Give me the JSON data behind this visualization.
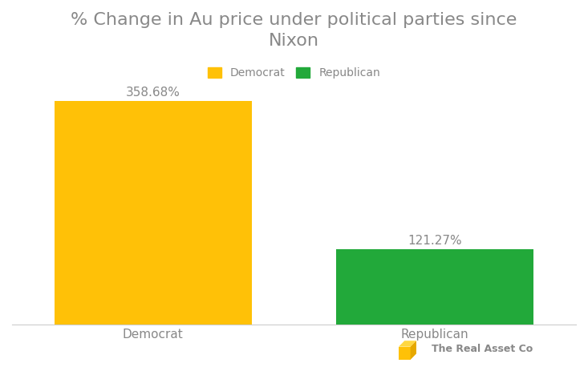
{
  "title": "% Change in Au price under political parties since\nNixon",
  "categories": [
    "Democrat",
    "Republican"
  ],
  "values": [
    358.68,
    121.27
  ],
  "bar_colors": [
    "#FFC107",
    "#22A93A"
  ],
  "value_labels": [
    "358.68%",
    "121.27%"
  ],
  "legend_labels": [
    "Democrat",
    "Republican"
  ],
  "legend_colors": [
    "#FFC107",
    "#22A93A"
  ],
  "title_color": "#888888",
  "label_color": "#888888",
  "tick_color": "#888888",
  "value_label_color": "#888888",
  "background_color": "#FFFFFF",
  "ylim": [
    0,
    420
  ],
  "bar_width": 0.35,
  "title_fontsize": 16,
  "label_fontsize": 11,
  "value_fontsize": 11,
  "legend_fontsize": 10
}
